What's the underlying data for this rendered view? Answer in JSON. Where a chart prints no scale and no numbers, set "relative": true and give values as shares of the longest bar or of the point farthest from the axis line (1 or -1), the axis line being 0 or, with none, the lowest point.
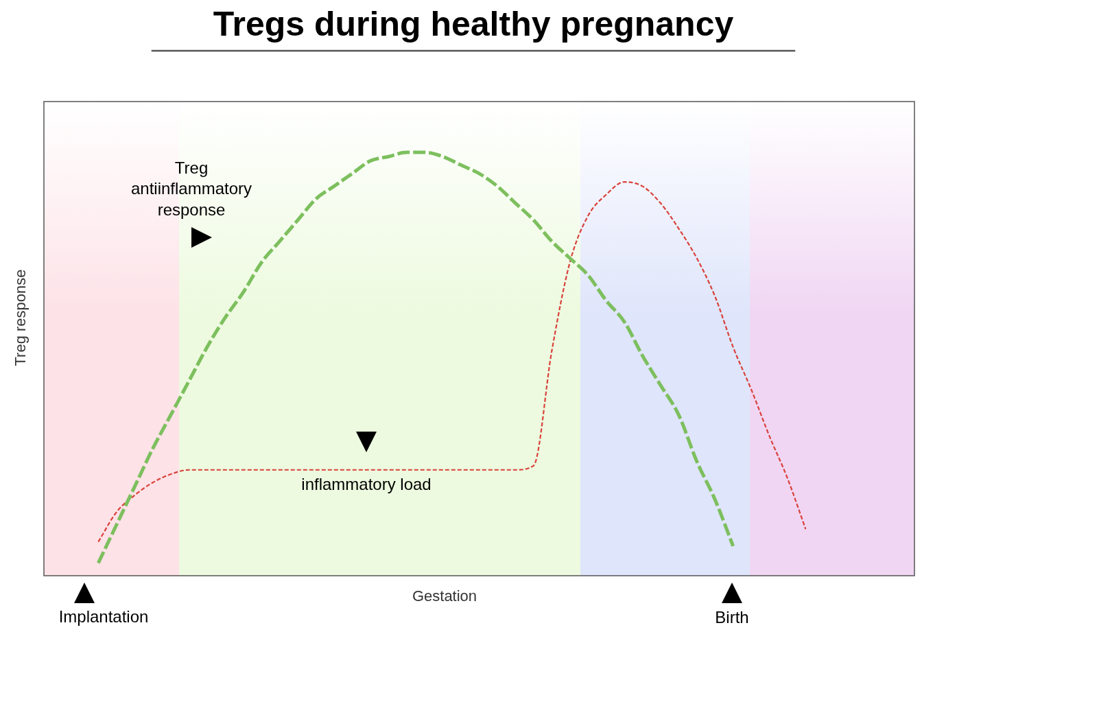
{
  "chart_data": {
    "type": "line",
    "title": "Tregs during healthy pregnancy",
    "xlabel": "Gestation",
    "ylabel": "Treg response",
    "relative": true,
    "legend": false,
    "marker": "none",
    "categories": [
      null,
      null,
      null,
      null,
      null,
      null,
      null,
      null,
      null,
      null,
      null,
      null,
      null,
      null,
      null,
      null,
      null,
      null,
      null,
      null,
      null,
      null,
      null,
      null,
      null,
      null,
      null,
      null,
      null,
      null,
      null,
      null,
      null,
      null,
      null,
      null,
      null,
      null,
      null,
      null,
      null,
      null,
      null,
      null,
      null,
      null,
      null,
      null,
      null
    ],
    "series": [
      {
        "name": "Treg antiinflammatory response",
        "color": "#7dbf5e",
        "line_style": "dashed",
        "values": [
          null,
          null,
          null,
          0.03,
          0.12,
          0.21,
          0.3,
          0.38,
          0.46,
          0.54,
          0.61,
          0.67,
          0.74,
          0.79,
          0.84,
          0.89,
          0.92,
          0.95,
          0.98,
          0.99,
          1,
          1,
          0.99,
          0.97,
          0.95,
          0.92,
          0.88,
          0.84,
          0.79,
          0.75,
          0.71,
          0.65,
          0.6,
          0.52,
          0.45,
          0.38,
          0.27,
          0.18,
          0.07,
          null,
          null,
          null,
          null,
          null,
          null,
          null,
          null,
          null,
          null
        ]
      },
      {
        "name": "inflammatory load",
        "color": "#d9413a",
        "line_style": "dotted",
        "values": [
          null,
          null,
          null,
          0.08,
          0.15,
          0.19,
          0.22,
          0.24,
          0.25,
          0.25,
          0.25,
          0.25,
          0.25,
          0.25,
          0.25,
          0.25,
          0.25,
          0.25,
          0.25,
          0.25,
          0.25,
          0.25,
          0.25,
          0.25,
          0.25,
          0.25,
          0.25,
          0.26,
          0.53,
          0.74,
          0.85,
          0.9,
          0.93,
          0.92,
          0.88,
          0.82,
          0.75,
          0.66,
          0.54,
          0.44,
          0.33,
          0.23,
          0.11,
          null,
          null,
          null,
          null,
          null,
          null
        ]
      }
    ],
    "annotations": [
      "Implantation",
      "Birth"
    ]
  }
}
